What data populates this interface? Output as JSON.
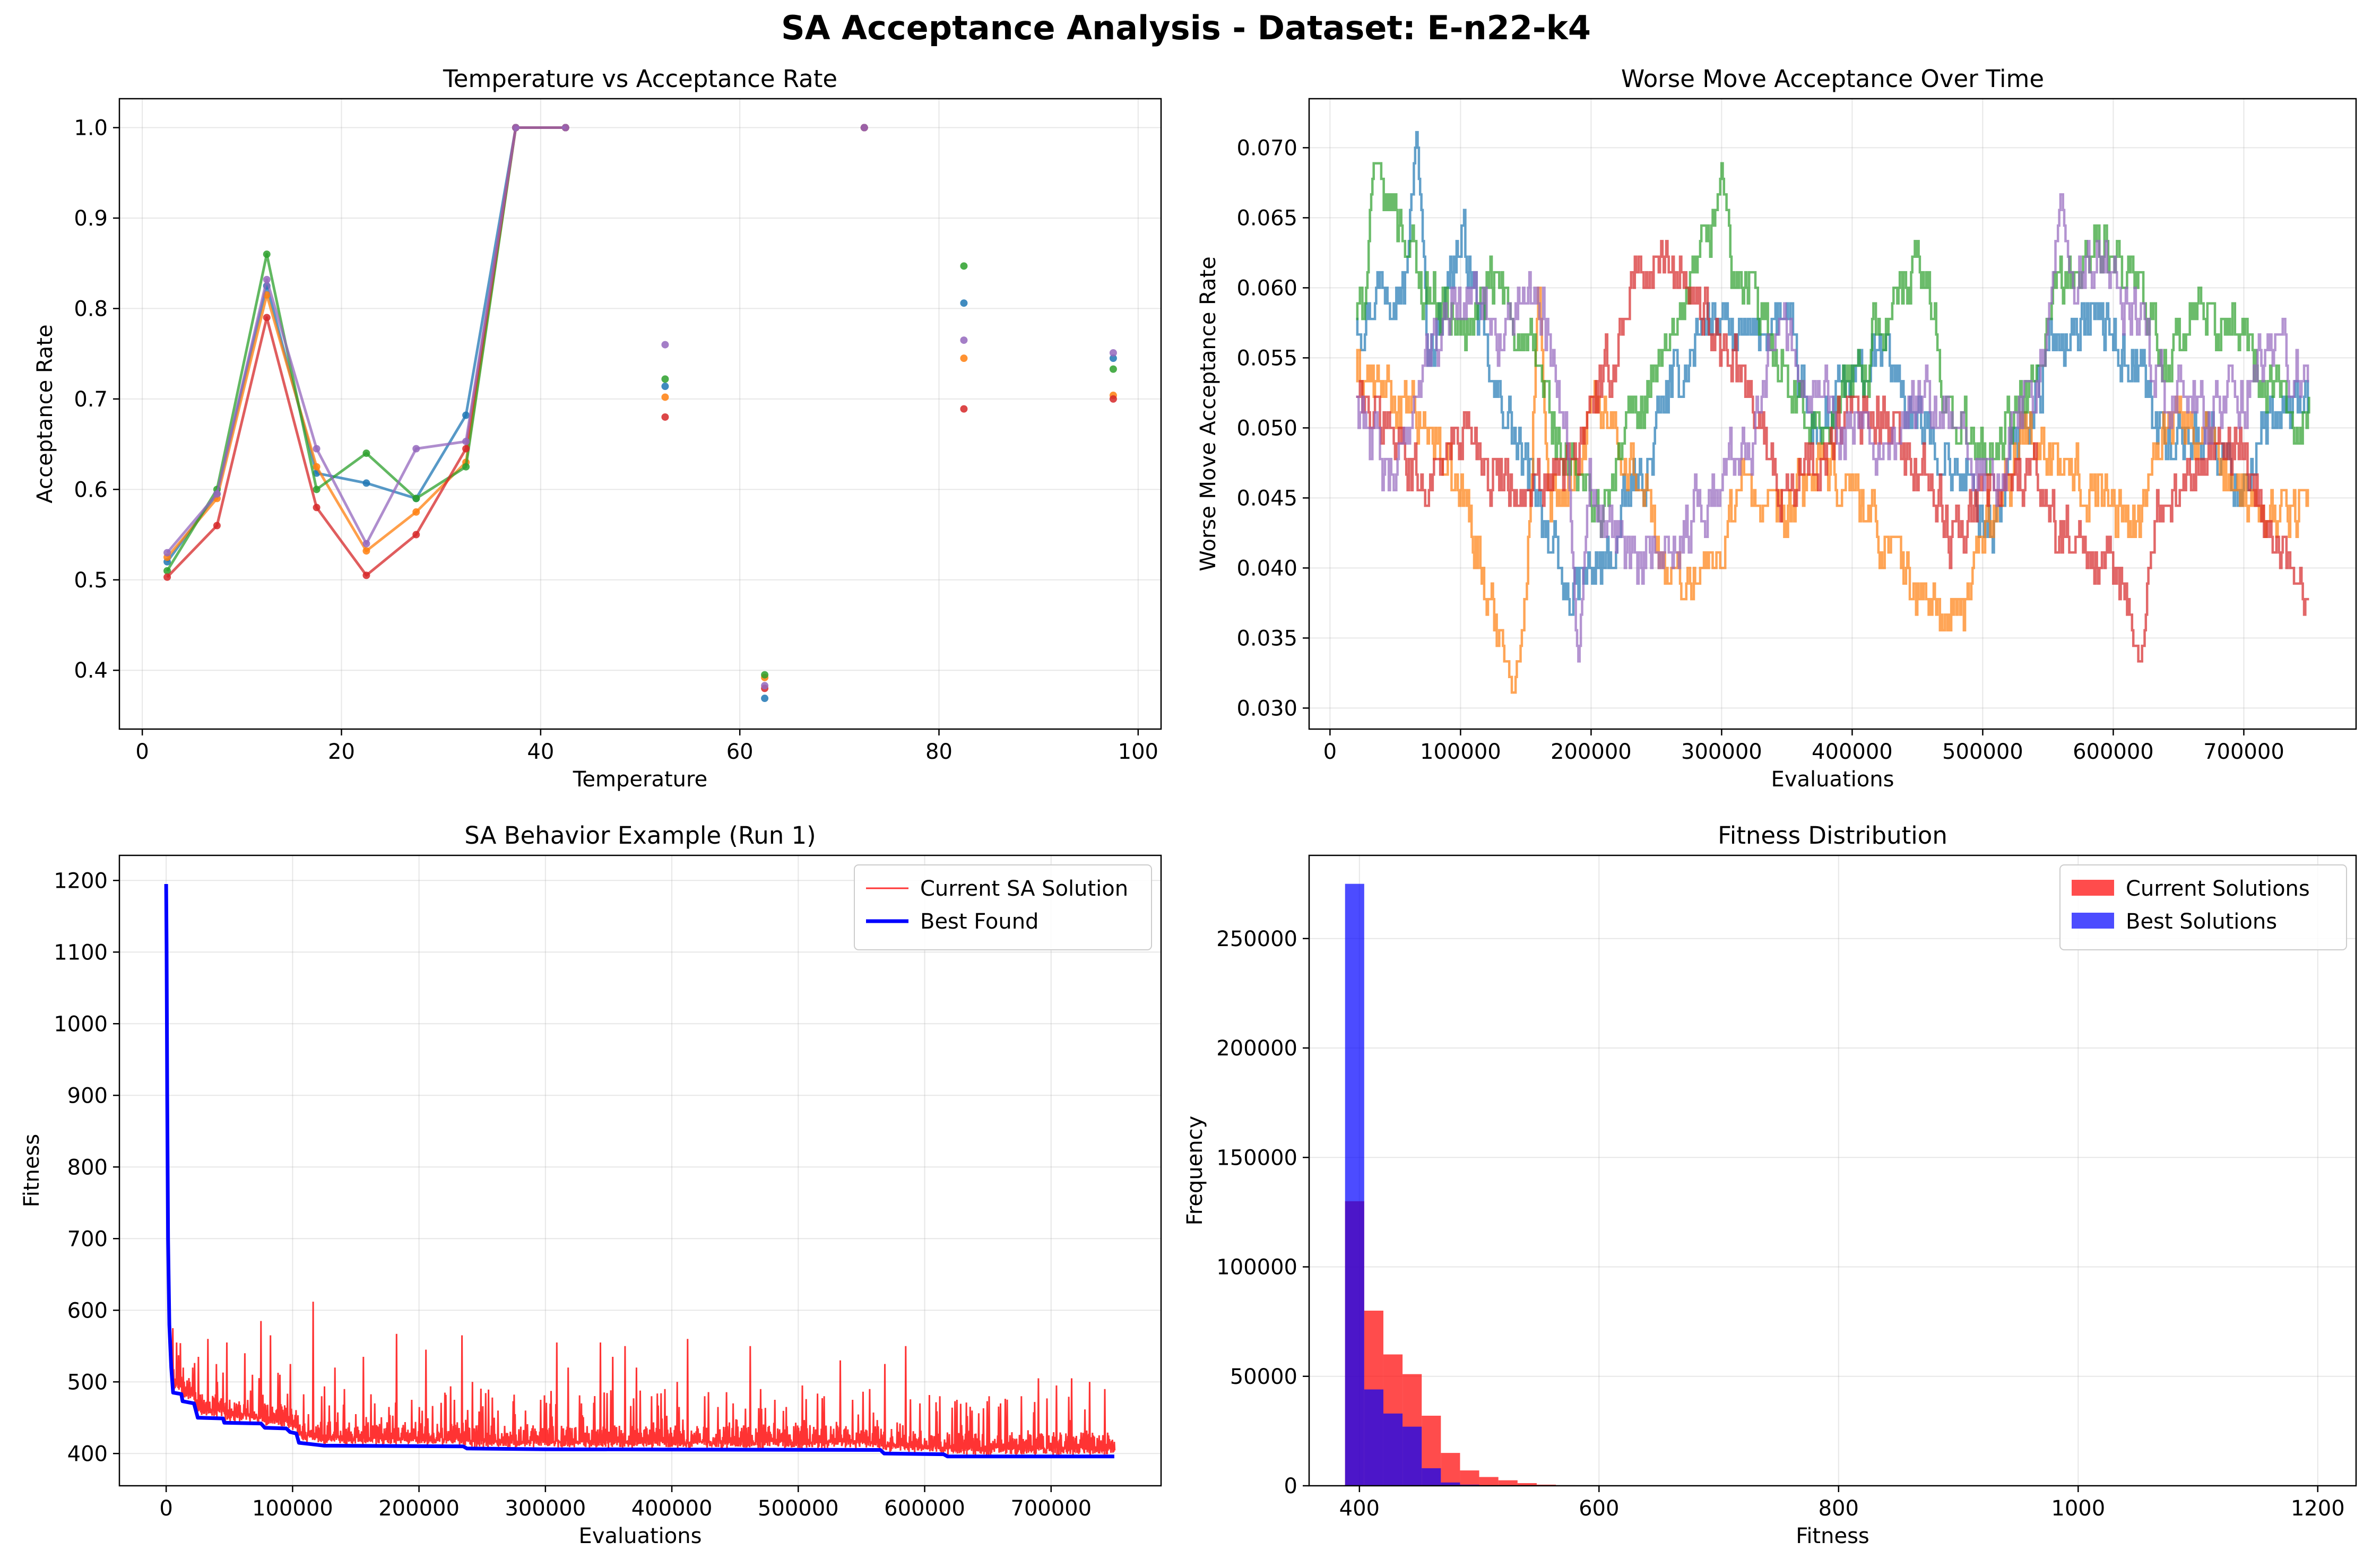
{
  "figure": {
    "title": "SA Acceptance Analysis - Dataset: E-n22-k4"
  },
  "palette": {
    "run1": "#1f77b4",
    "run2": "#ff7f0e",
    "run3": "#2ca02c",
    "run4": "#d62728",
    "run5": "#9467bd",
    "current": "#ff0000",
    "best": "#0000ff",
    "grid": "#b0b0b0"
  },
  "chart_data": [
    {
      "id": "temp_acc",
      "type": "line",
      "title": "Temperature vs Acceptance Rate",
      "xlabel": "Temperature",
      "ylabel": "Acceptance Rate",
      "xlim": [
        -2.3,
        102.3
      ],
      "ylim": [
        0.335,
        1.032
      ],
      "xticks": [
        0,
        20,
        40,
        60,
        80,
        100
      ],
      "yticks": [
        0.4,
        0.5,
        0.6,
        0.7,
        0.8,
        0.9,
        1.0
      ],
      "ytick_format": 1,
      "grid": true,
      "x": [
        2.5,
        7.5,
        12.5,
        17.5,
        22.5,
        27.5,
        32.5,
        37.5,
        42.5,
        52.5,
        62.5,
        72.5,
        82.5,
        97.5
      ],
      "series": [
        {
          "color_key": "run1",
          "values": [
            0.52,
            0.595,
            0.825,
            0.618,
            0.607,
            0.59,
            0.682,
            1.0,
            1.0,
            0.714,
            0.369,
            1.0,
            0.806,
            0.745
          ]
        },
        {
          "color_key": "run2",
          "values": [
            0.525,
            0.59,
            0.815,
            0.625,
            0.532,
            0.575,
            0.63,
            1.0,
            1.0,
            0.702,
            0.392,
            1.0,
            0.745,
            0.704
          ]
        },
        {
          "color_key": "run3",
          "values": [
            0.51,
            0.6,
            0.86,
            0.6,
            0.64,
            0.59,
            0.625,
            1.0,
            1.0,
            0.722,
            0.395,
            1.0,
            0.847,
            0.733
          ]
        },
        {
          "color_key": "run4",
          "values": [
            0.503,
            0.56,
            0.79,
            0.58,
            0.505,
            0.55,
            0.645,
            1.0,
            1.0,
            0.68,
            0.38,
            1.0,
            0.689,
            0.7
          ]
        },
        {
          "color_key": "run5",
          "values": [
            0.53,
            0.595,
            0.832,
            0.645,
            0.54,
            0.645,
            0.653,
            1.0,
            1.0,
            0.76,
            0.383,
            1.0,
            0.765,
            0.751
          ]
        }
      ]
    },
    {
      "id": "worse_move",
      "type": "line",
      "title": "Worse Move Acceptance Over Time",
      "xlabel": "Evaluations",
      "ylabel": "Worse Move Acceptance Rate",
      "xlim": [
        -16000,
        786000
      ],
      "ylim": [
        0.0285,
        0.0735
      ],
      "xticks": [
        0,
        100000,
        200000,
        300000,
        400000,
        500000,
        600000,
        700000
      ],
      "yticks": [
        0.03,
        0.035,
        0.04,
        0.045,
        0.05,
        0.055,
        0.06,
        0.065,
        0.07
      ],
      "ytick_format": 3,
      "grid": true,
      "x_start": 20000,
      "x_end": 750000,
      "series": [
        {
          "color_key": "run1",
          "anchors": [
            0.058,
            0.061,
            0.056,
            0.063,
            0.052,
            0.046,
            0.038,
            0.04,
            0.046,
            0.053,
            0.058,
            0.056,
            0.058,
            0.05,
            0.053,
            0.055,
            0.05,
            0.047,
            0.043,
            0.051,
            0.057,
            0.058,
            0.055,
            0.049,
            0.05,
            0.046,
            0.05,
            0.052
          ],
          "peaks": [
            [
              66000,
              0.0712
            ]
          ]
        },
        {
          "color_key": "run2",
          "anchors": [
            0.054,
            0.052,
            0.05,
            0.045,
            0.036,
            0.039,
            0.047,
            0.052,
            0.046,
            0.039,
            0.04,
            0.046,
            0.043,
            0.047,
            0.046,
            0.042,
            0.038,
            0.036,
            0.044,
            0.05,
            0.047,
            0.046,
            0.043,
            0.051,
            0.049,
            0.046,
            0.044,
            0.045
          ],
          "peaks": [
            [
              140000,
              0.0305
            ],
            [
              160000,
              0.061
            ]
          ]
        },
        {
          "color_key": "run3",
          "anchors": [
            0.058,
            0.066,
            0.06,
            0.057,
            0.06,
            0.055,
            0.047,
            0.044,
            0.052,
            0.056,
            0.063,
            0.06,
            0.055,
            0.05,
            0.053,
            0.058,
            0.061,
            0.05,
            0.048,
            0.052,
            0.06,
            0.063,
            0.06,
            0.055,
            0.058,
            0.057,
            0.052,
            0.051
          ],
          "peaks": [
            [
              35000,
              0.0696
            ],
            [
              300000,
              0.0686
            ]
          ]
        },
        {
          "color_key": "run4",
          "anchors": [
            0.052,
            0.05,
            0.046,
            0.05,
            0.047,
            0.045,
            0.047,
            0.053,
            0.061,
            0.062,
            0.058,
            0.053,
            0.046,
            0.047,
            0.051,
            0.05,
            0.047,
            0.042,
            0.046,
            0.047,
            0.043,
            0.04,
            0.038,
            0.045,
            0.048,
            0.049,
            0.042,
            0.038
          ],
          "peaks": [
            [
              620000,
              0.033
            ]
          ]
        },
        {
          "color_key": "run5",
          "anchors": [
            0.052,
            0.046,
            0.055,
            0.06,
            0.057,
            0.06,
            0.052,
            0.044,
            0.04,
            0.042,
            0.045,
            0.049,
            0.058,
            0.053,
            0.05,
            0.047,
            0.052,
            0.05,
            0.046,
            0.052,
            0.059,
            0.062,
            0.058,
            0.053,
            0.051,
            0.052,
            0.056,
            0.053
          ],
          "peaks": [
            [
              190000,
              0.0325
            ],
            [
              560000,
              0.0665
            ]
          ]
        }
      ]
    },
    {
      "id": "sa_behavior",
      "type": "line",
      "title": "SA Behavior Example (Run 1)",
      "xlabel": "Evaluations",
      "ylabel": "Fitness",
      "xlim": [
        -37000,
        787000
      ],
      "ylim": [
        355,
        1235
      ],
      "xticks": [
        0,
        100000,
        200000,
        300000,
        400000,
        500000,
        600000,
        700000
      ],
      "yticks": [
        400,
        500,
        600,
        700,
        800,
        900,
        1000,
        1100,
        1200
      ],
      "ytick_format": 0,
      "grid": true,
      "legend": {
        "placement": "top-right",
        "entries": [
          {
            "label": "Current SA Solution",
            "color_key": "current"
          },
          {
            "label": "Best Found",
            "color_key": "best"
          }
        ]
      },
      "series": [
        {
          "name": "Best Found",
          "color_key": "best",
          "points": [
            [
              0,
              1195
            ],
            [
              300,
              1110
            ],
            [
              800,
              900
            ],
            [
              1500,
              700
            ],
            [
              2500,
              580
            ],
            [
              4000,
              520
            ],
            [
              5500,
              485
            ],
            [
              12000,
              483
            ],
            [
              13000,
              473
            ],
            [
              22000,
              470
            ],
            [
              25000,
              450
            ],
            [
              45000,
              449
            ],
            [
              46000,
              443
            ],
            [
              75000,
              442
            ],
            [
              78000,
              436
            ],
            [
              95000,
              435
            ],
            [
              98000,
              430
            ],
            [
              103000,
              428
            ],
            [
              105000,
              415
            ],
            [
              115000,
              413
            ],
            [
              125000,
              411
            ],
            [
              235000,
              410
            ],
            [
              238000,
              407
            ],
            [
              300000,
              406
            ],
            [
              565000,
              405
            ],
            [
              568000,
              400
            ],
            [
              615000,
              399
            ],
            [
              618000,
              396
            ],
            [
              750000,
              396
            ]
          ]
        },
        {
          "name": "Current SA Solution",
          "color_key": "current",
          "spikes": [
            [
              5000,
              575
            ],
            [
              8000,
              555
            ],
            [
              13000,
              520
            ],
            [
              21000,
              520
            ],
            [
              25000,
              535
            ],
            [
              33000,
              560
            ],
            [
              40000,
              500
            ],
            [
              48000,
              555
            ],
            [
              62000,
              540
            ],
            [
              68000,
              510
            ],
            [
              75000,
              585
            ],
            [
              82000,
              565
            ],
            [
              90000,
              510
            ],
            [
              98000,
              525
            ],
            [
              112000,
              455
            ],
            [
              116000,
              612
            ],
            [
              123000,
              480
            ],
            [
              133000,
              520
            ],
            [
              141000,
              490
            ],
            [
              150000,
              455
            ],
            [
              156000,
              535
            ],
            [
              165000,
              470
            ],
            [
              176000,
              465
            ],
            [
              182000,
              567
            ],
            [
              194000,
              475
            ],
            [
              205000,
              545
            ],
            [
              220000,
              485
            ],
            [
              228000,
              475
            ],
            [
              234000,
              565
            ],
            [
              242000,
              500
            ],
            [
              262000,
              460
            ],
            [
              276000,
              455
            ],
            [
              284000,
              460
            ],
            [
              296000,
              475
            ],
            [
              309000,
              555
            ],
            [
              318000,
              520
            ],
            [
              328000,
              470
            ],
            [
              343000,
              555
            ],
            [
              353000,
              535
            ],
            [
              363000,
              550
            ],
            [
              372000,
              520
            ],
            [
              384000,
              480
            ],
            [
              394000,
              490
            ],
            [
              404000,
              500
            ],
            [
              412000,
              560
            ],
            [
              426000,
              480
            ],
            [
              436000,
              465
            ],
            [
              448000,
              470
            ],
            [
              462000,
              550
            ],
            [
              470000,
              490
            ],
            [
              481000,
              475
            ],
            [
              490000,
              465
            ],
            [
              503000,
              495
            ],
            [
              520000,
              480
            ],
            [
              533000,
              530
            ],
            [
              543000,
              475
            ],
            [
              556000,
              490
            ],
            [
              568000,
              525
            ],
            [
              585000,
              550
            ],
            [
              596000,
              470
            ],
            [
              612000,
              480
            ],
            [
              625000,
              475
            ],
            [
              637000,
              460
            ],
            [
              651000,
              480
            ],
            [
              660000,
              470
            ],
            [
              676000,
              480
            ],
            [
              690000,
              505
            ],
            [
              704000,
              495
            ],
            [
              716000,
              505
            ],
            [
              730000,
              500
            ],
            [
              742000,
              490
            ]
          ]
        }
      ]
    },
    {
      "id": "fitness_dist",
      "type": "bar",
      "title": "Fitness Distribution",
      "xlabel": "Fitness",
      "ylabel": "Frequency",
      "xlim": [
        358,
        1232
      ],
      "ylim": [
        0,
        288000
      ],
      "xticks": [
        400,
        600,
        800,
        1000,
        1200
      ],
      "yticks": [
        0,
        50000,
        100000,
        150000,
        200000,
        250000
      ],
      "ytick_format": 0,
      "grid": true,
      "bin_edges": [
        388,
        404,
        420,
        436,
        452,
        468,
        484,
        500,
        516,
        532,
        548,
        564,
        580,
        596
      ],
      "legend": {
        "placement": "top-right",
        "entries": [
          {
            "label": "Current Solutions",
            "color_key": "current"
          },
          {
            "label": "Best Solutions",
            "color_key": "best"
          }
        ]
      },
      "series": [
        {
          "name": "Current Solutions",
          "color_key": "current",
          "values": [
            130000,
            80000,
            60000,
            51000,
            32000,
            15000,
            7000,
            4000,
            2500,
            1200,
            500,
            250,
            100
          ]
        },
        {
          "name": "Best Solutions",
          "color_key": "best",
          "values": [
            275000,
            44000,
            33000,
            27000,
            8000,
            1500,
            500,
            100,
            0,
            0,
            0,
            0,
            0
          ]
        }
      ]
    }
  ]
}
